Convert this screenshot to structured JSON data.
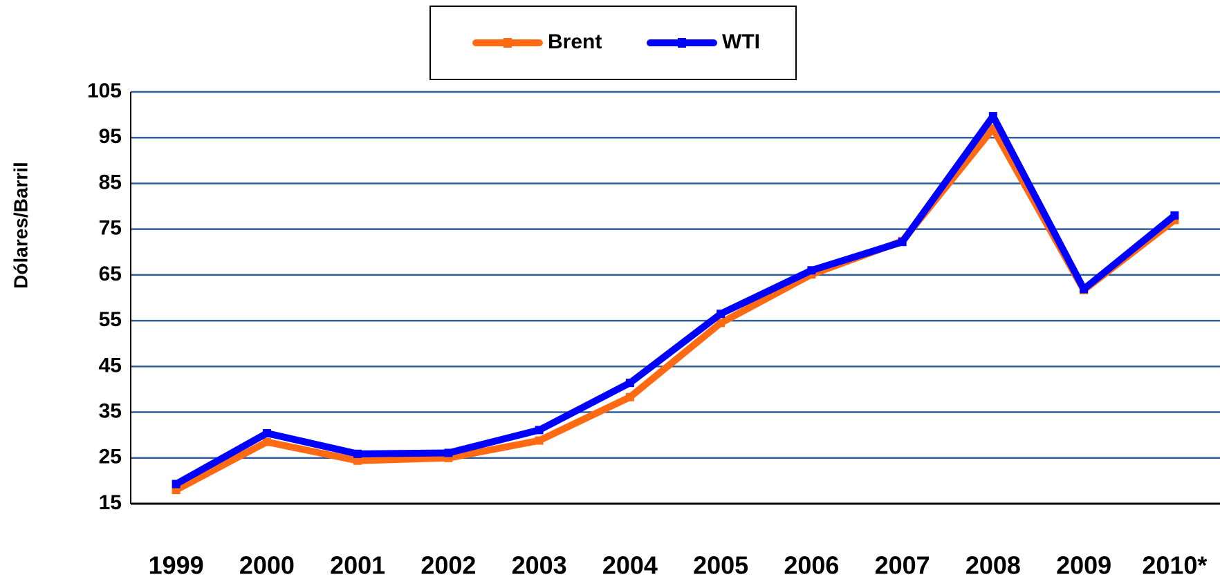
{
  "chart_data": {
    "type": "line",
    "y_label": "Dólares/Barril",
    "categories": [
      "1999",
      "2000",
      "2001",
      "2002",
      "2003",
      "2004",
      "2005",
      "2006",
      "2007",
      "2008",
      "2009",
      "2010*"
    ],
    "series": [
      {
        "name": "Brent",
        "color": "#ff6a13",
        "values": [
          18.0,
          28.5,
          24.4,
          25.0,
          28.8,
          38.3,
          54.5,
          65.1,
          72.4,
          97.0,
          61.7,
          77.0
        ]
      },
      {
        "name": "WTI",
        "color": "#0000ff",
        "values": [
          19.3,
          30.4,
          25.9,
          26.1,
          31.1,
          41.4,
          56.5,
          66.0,
          72.2,
          99.7,
          61.9,
          78.0
        ]
      }
    ],
    "ylim": [
      15,
      105
    ],
    "yticks": [
      15,
      25,
      35,
      45,
      55,
      65,
      75,
      85,
      95,
      105
    ],
    "grid": true,
    "legend": "top"
  }
}
